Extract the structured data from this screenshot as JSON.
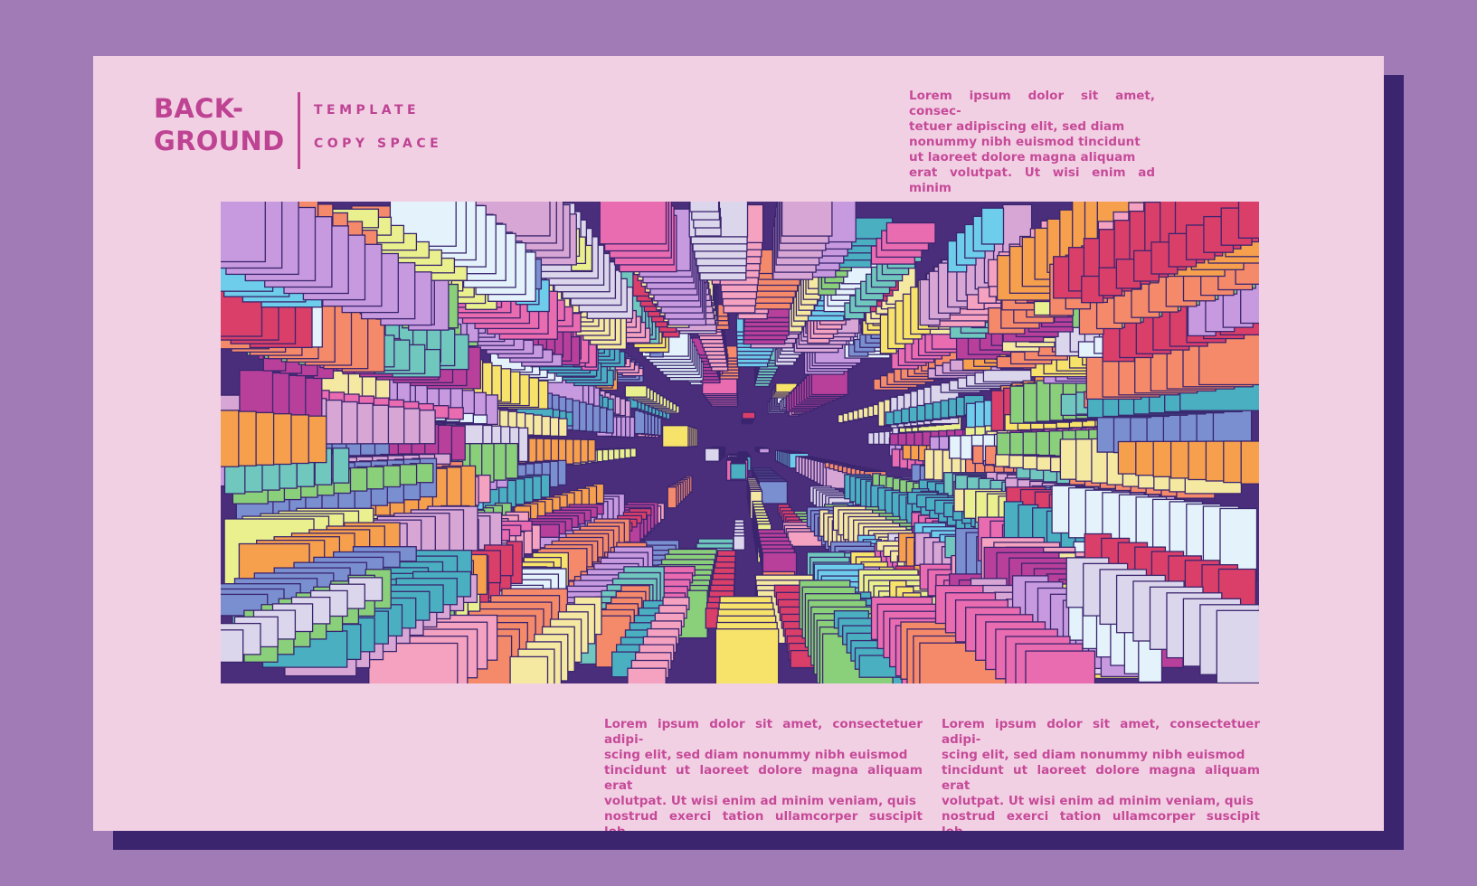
{
  "poster": {
    "title_line1": "BACK-",
    "title_line2": "GROUND",
    "tag_template": "TEMPLATE",
    "tag_copy_space": "COPY SPACE",
    "paragraph_top": "Lorem ipsum dolor sit amet, consec-\ntetuer adipiscing elit, sed diam\nnonummy nibh euismod tincidunt\nut laoreet dolore magna aliquam\nerat volutpat. Ut wisi enim ad minim",
    "paragraph_bottom_left": "Lorem ipsum dolor sit amet, consectetuer adipi-\nscing elit, sed diam nonummy nibh euismod\ntincidunt ut laoreet dolore magna aliquam erat\nvolutpat. Ut wisi enim ad minim veniam, quis\nnostrud exerci tation ullamcorper suscipit lob-",
    "paragraph_bottom_right": "Lorem ipsum dolor sit amet, consectetuer adipi-\nscing elit, sed diam nonummy nibh euismod\ntincidunt ut laoreet dolore magna aliquam erat\nvolutpat. Ut wisi enim ad minim veniam, quis\nnostrud exerci tation ullamcorper suscipit lob-"
  },
  "colors": {
    "page_bg": "#a17bb6",
    "card_bg": "#f2d0e4",
    "card_shadow": "#3a256e",
    "accent": "#be4393",
    "outline": "#3a256e",
    "palette": [
      "#f6a04d",
      "#f7e36a",
      "#6dcdea",
      "#e96bb0",
      "#b9409a",
      "#7a8fd0",
      "#6fc7be",
      "#f4a2c0",
      "#e9f08d",
      "#dcd6ec",
      "#8ad07a",
      "#f58a6b",
      "#d7a6d5",
      "#f5e8a0",
      "#c79adf",
      "#e4f3fb",
      "#da3f6a",
      "#4ab0c1"
    ]
  },
  "artwork": {
    "name": "isometric-city-block-pattern",
    "seed": 7
  }
}
